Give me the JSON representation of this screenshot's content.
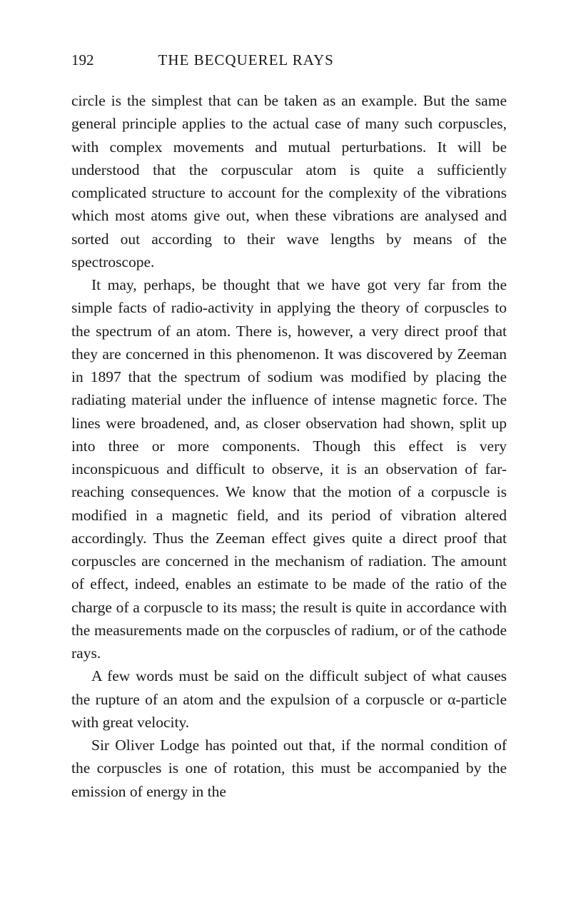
{
  "header": {
    "pageNumber": "192",
    "title": "THE BECQUEREL RAYS"
  },
  "paragraphs": {
    "p1": "circle is the simplest that can be taken as an example. But the same general principle applies to the actual case of many such corpuscles, with complex movements and mutual perturbations. It will be understood that the corpuscular atom is quite a sufficiently complicated structure to account for the complexity of the vibrations which most atoms give out, when these vibrations are analysed and sorted out according to their wave lengths by means of the spectroscope.",
    "p2": "It may, perhaps, be thought that we have got very far from the simple facts of radio-activity in applying the theory of corpuscles to the spectrum of an atom. There is, however, a very direct proof that they are concerned in this phenomenon. It was discovered by Zeeman in 1897 that the spectrum of sodium was modified by placing the radiating material under the influence of intense magnetic force. The lines were broadened, and, as closer observation had shown, split up into three or more components. Though this effect is very inconspicuous and difficult to observe, it is an observation of far-reaching consequences. We know that the motion of a corpuscle is modified in a magnetic field, and its period of vibration altered accordingly. Thus the Zeeman effect gives quite a direct proof that corpuscles are concerned in the mechanism of radiation. The amount of effect, indeed, enables an estimate to be made of the ratio of the charge of a corpuscle to its mass; the result is quite in accordance with the measurements made on the corpuscles of radium, or of the cathode rays.",
    "p3": "A few words must be said on the difficult subject of what causes the rupture of an atom and the expulsion of a corpuscle or α-particle with great velocity.",
    "p4": "Sir Oliver Lodge has pointed out that, if the normal condition of the corpuscles is one of rotation, this must be accompanied by the emission of energy in the"
  },
  "styling": {
    "backgroundColor": "#ffffff",
    "textColor": "#1a1a1a",
    "fontFamily": "Georgia, Times New Roman, serif",
    "bodyFontSize": 21.5,
    "headerFontSize": 21,
    "lineHeight": 1.5,
    "pageWidth": 800,
    "pageHeight": 1282
  }
}
